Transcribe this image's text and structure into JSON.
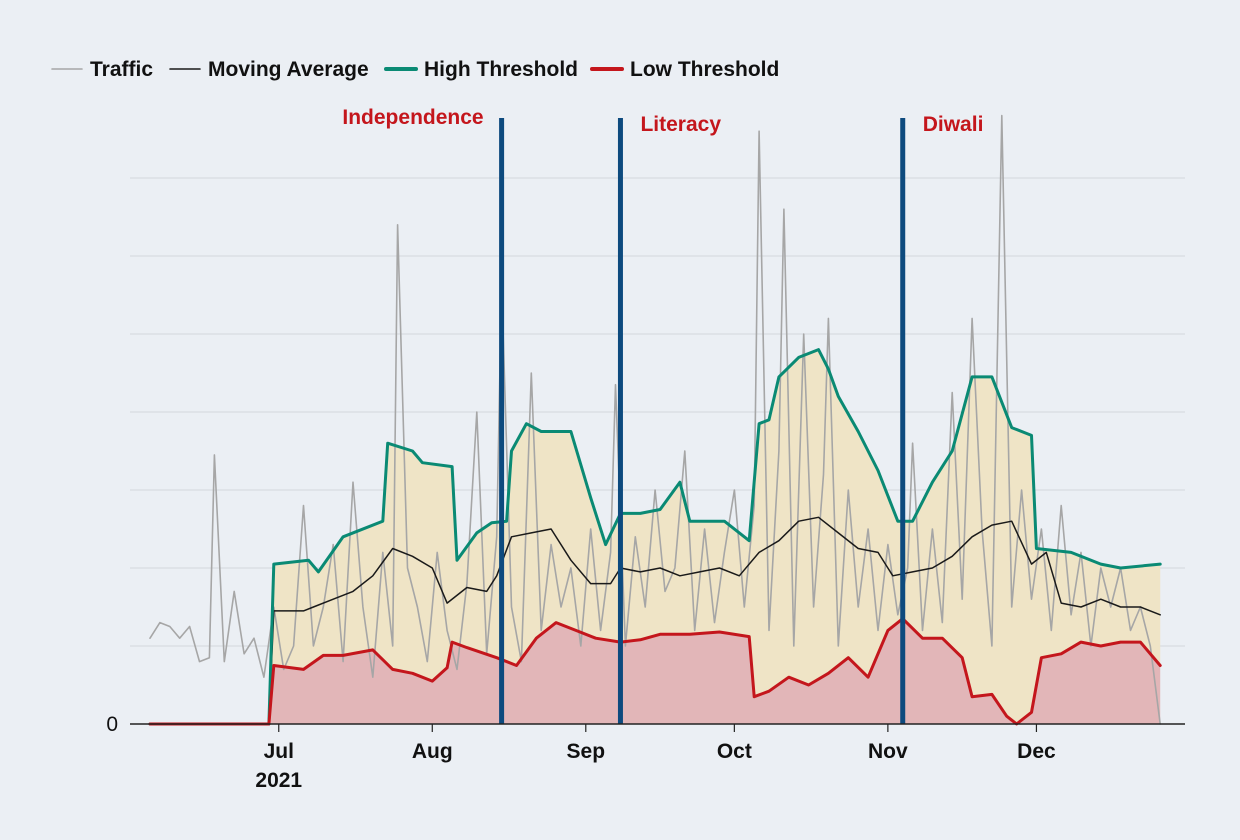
{
  "chart_data": {
    "type": "line",
    "title": "",
    "xlabel": "",
    "ylabel": "",
    "x_ticks": [
      {
        "label": "Jul",
        "date": "2021-07-01",
        "sublabel": "2021"
      },
      {
        "label": "Aug",
        "date": "2021-08-01",
        "sublabel": ""
      },
      {
        "label": "Sep",
        "date": "2021-09-01",
        "sublabel": ""
      },
      {
        "label": "Oct",
        "date": "2021-10-01",
        "sublabel": ""
      },
      {
        "label": "Nov",
        "date": "2021-11-01",
        "sublabel": ""
      },
      {
        "label": "Dec",
        "date": "2021-12-01",
        "sublabel": ""
      }
    ],
    "y_ticks": [
      "0",
      "",
      "",
      "",
      "",
      "",
      "",
      ""
    ],
    "xlim": [
      "2021-06-05",
      "2021-12-31"
    ],
    "ylim": [
      0,
      7
    ],
    "grid": true,
    "legend_position": "top-left",
    "legend": [
      {
        "label": "Traffic",
        "color": "#a6a6a6"
      },
      {
        "label": "Moving Average",
        "color": "#1a1a1a"
      },
      {
        "label": "High Threshold",
        "color": "#0a8a74"
      },
      {
        "label": "Low Threshold",
        "color": "#c4161c"
      }
    ],
    "band_colors": {
      "upper": "#efe4c6",
      "lower": "#e2b6b8"
    },
    "events": [
      {
        "label": "Independence",
        "date": "2021-08-15",
        "line_color": "#0d4a7e",
        "label_color": "#c4161c"
      },
      {
        "label": "Literacy",
        "date": "2021-09-08",
        "line_color": "#0d4a7e",
        "label_color": "#c4161c"
      },
      {
        "label": "Diwali",
        "date": "2021-11-04",
        "line_color": "#0d4a7e",
        "label_color": "#c4161c"
      }
    ],
    "series": [
      {
        "name": "Traffic",
        "color": "#a6a6a6",
        "points": [
          [
            "2021-06-05",
            1.1
          ],
          [
            "2021-06-07",
            1.3
          ],
          [
            "2021-06-09",
            1.25
          ],
          [
            "2021-06-11",
            1.1
          ],
          [
            "2021-06-13",
            1.25
          ],
          [
            "2021-06-15",
            0.8
          ],
          [
            "2021-06-17",
            0.85
          ],
          [
            "2021-06-18",
            3.45
          ],
          [
            "2021-06-20",
            0.8
          ],
          [
            "2021-06-22",
            1.7
          ],
          [
            "2021-06-24",
            0.9
          ],
          [
            "2021-06-26",
            1.1
          ],
          [
            "2021-06-28",
            0.6
          ],
          [
            "2021-06-30",
            1.5
          ],
          [
            "2021-07-02",
            0.7
          ],
          [
            "2021-07-04",
            1.0
          ],
          [
            "2021-07-06",
            2.8
          ],
          [
            "2021-07-08",
            1.0
          ],
          [
            "2021-07-10",
            1.5
          ],
          [
            "2021-07-12",
            2.3
          ],
          [
            "2021-07-14",
            0.8
          ],
          [
            "2021-07-16",
            3.1
          ],
          [
            "2021-07-18",
            1.5
          ],
          [
            "2021-07-20",
            0.6
          ],
          [
            "2021-07-22",
            2.2
          ],
          [
            "2021-07-24",
            1.0
          ],
          [
            "2021-07-25",
            6.4
          ],
          [
            "2021-07-27",
            2.0
          ],
          [
            "2021-07-29",
            1.5
          ],
          [
            "2021-07-31",
            0.8
          ],
          [
            "2021-08-02",
            2.2
          ],
          [
            "2021-08-04",
            1.2
          ],
          [
            "2021-08-06",
            0.7
          ],
          [
            "2021-08-08",
            1.8
          ],
          [
            "2021-08-10",
            4.0
          ],
          [
            "2021-08-12",
            0.9
          ],
          [
            "2021-08-14",
            2.4
          ],
          [
            "2021-08-15",
            5.65
          ],
          [
            "2021-08-17",
            1.5
          ],
          [
            "2021-08-19",
            0.8
          ],
          [
            "2021-08-21",
            4.5
          ],
          [
            "2021-08-23",
            1.2
          ],
          [
            "2021-08-25",
            2.3
          ],
          [
            "2021-08-27",
            1.5
          ],
          [
            "2021-08-29",
            2.0
          ],
          [
            "2021-08-31",
            1.0
          ],
          [
            "2021-09-02",
            2.5
          ],
          [
            "2021-09-04",
            1.2
          ],
          [
            "2021-09-06",
            2.2
          ],
          [
            "2021-09-07",
            4.35
          ],
          [
            "2021-09-09",
            1.0
          ],
          [
            "2021-09-11",
            2.4
          ],
          [
            "2021-09-13",
            1.5
          ],
          [
            "2021-09-15",
            3.0
          ],
          [
            "2021-09-17",
            1.7
          ],
          [
            "2021-09-19",
            2.0
          ],
          [
            "2021-09-21",
            3.5
          ],
          [
            "2021-09-23",
            1.2
          ],
          [
            "2021-09-25",
            2.5
          ],
          [
            "2021-09-27",
            1.3
          ],
          [
            "2021-09-29",
            2.2
          ],
          [
            "2021-10-01",
            3.0
          ],
          [
            "2021-10-03",
            1.5
          ],
          [
            "2021-10-05",
            2.8
          ],
          [
            "2021-10-06",
            7.6
          ],
          [
            "2021-10-08",
            1.2
          ],
          [
            "2021-10-10",
            3.5
          ],
          [
            "2021-10-11",
            6.6
          ],
          [
            "2021-10-13",
            1.0
          ],
          [
            "2021-10-15",
            5.0
          ],
          [
            "2021-10-17",
            1.5
          ],
          [
            "2021-10-19",
            3.2
          ],
          [
            "2021-10-20",
            5.2
          ],
          [
            "2021-10-22",
            1.0
          ],
          [
            "2021-10-24",
            3.0
          ],
          [
            "2021-10-26",
            1.5
          ],
          [
            "2021-10-28",
            2.5
          ],
          [
            "2021-10-30",
            1.2
          ],
          [
            "2021-11-01",
            2.3
          ],
          [
            "2021-11-03",
            1.4
          ],
          [
            "2021-11-05",
            2.0
          ],
          [
            "2021-11-06",
            3.6
          ],
          [
            "2021-11-08",
            1.2
          ],
          [
            "2021-11-10",
            2.5
          ],
          [
            "2021-11-12",
            1.3
          ],
          [
            "2021-11-14",
            4.25
          ],
          [
            "2021-11-16",
            1.6
          ],
          [
            "2021-11-18",
            5.2
          ],
          [
            "2021-11-20",
            2.5
          ],
          [
            "2021-11-22",
            1.0
          ],
          [
            "2021-11-24",
            7.8
          ],
          [
            "2021-11-26",
            1.5
          ],
          [
            "2021-11-28",
            3.0
          ],
          [
            "2021-11-30",
            1.6
          ],
          [
            "2021-12-02",
            2.5
          ],
          [
            "2021-12-04",
            1.2
          ],
          [
            "2021-12-06",
            2.8
          ],
          [
            "2021-12-08",
            1.4
          ],
          [
            "2021-12-10",
            2.2
          ],
          [
            "2021-12-12",
            1.0
          ],
          [
            "2021-12-14",
            2.0
          ],
          [
            "2021-12-16",
            1.5
          ],
          [
            "2021-12-18",
            2.0
          ],
          [
            "2021-12-20",
            1.2
          ],
          [
            "2021-12-22",
            1.5
          ],
          [
            "2021-12-24",
            1.0
          ],
          [
            "2021-12-26",
            0.0
          ]
        ]
      },
      {
        "name": "Moving Average",
        "color": "#1a1a1a",
        "points": [
          [
            "2021-06-05",
            0.0
          ],
          [
            "2021-06-29",
            0.0
          ],
          [
            "2021-06-30",
            1.45
          ],
          [
            "2021-07-06",
            1.45
          ],
          [
            "2021-07-08",
            1.5
          ],
          [
            "2021-07-12",
            1.6
          ],
          [
            "2021-07-16",
            1.7
          ],
          [
            "2021-07-20",
            1.9
          ],
          [
            "2021-07-24",
            2.25
          ],
          [
            "2021-07-28",
            2.15
          ],
          [
            "2021-08-01",
            2.0
          ],
          [
            "2021-08-04",
            1.55
          ],
          [
            "2021-08-08",
            1.75
          ],
          [
            "2021-08-12",
            1.7
          ],
          [
            "2021-08-14",
            1.9
          ],
          [
            "2021-08-17",
            2.4
          ],
          [
            "2021-08-21",
            2.45
          ],
          [
            "2021-08-25",
            2.5
          ],
          [
            "2021-08-29",
            2.1
          ],
          [
            "2021-09-02",
            1.8
          ],
          [
            "2021-09-06",
            1.8
          ],
          [
            "2021-09-08",
            2.0
          ],
          [
            "2021-09-12",
            1.95
          ],
          [
            "2021-09-16",
            2.0
          ],
          [
            "2021-09-20",
            1.9
          ],
          [
            "2021-09-24",
            1.95
          ],
          [
            "2021-09-28",
            2.0
          ],
          [
            "2021-10-02",
            1.9
          ],
          [
            "2021-10-06",
            2.2
          ],
          [
            "2021-10-10",
            2.35
          ],
          [
            "2021-10-14",
            2.6
          ],
          [
            "2021-10-18",
            2.65
          ],
          [
            "2021-10-22",
            2.45
          ],
          [
            "2021-10-26",
            2.25
          ],
          [
            "2021-10-30",
            2.2
          ],
          [
            "2021-11-02",
            1.9
          ],
          [
            "2021-11-06",
            1.95
          ],
          [
            "2021-11-10",
            2.0
          ],
          [
            "2021-11-14",
            2.15
          ],
          [
            "2021-11-18",
            2.4
          ],
          [
            "2021-11-22",
            2.55
          ],
          [
            "2021-11-26",
            2.6
          ],
          [
            "2021-11-30",
            2.05
          ],
          [
            "2021-12-03",
            2.2
          ],
          [
            "2021-12-06",
            1.55
          ],
          [
            "2021-12-10",
            1.5
          ],
          [
            "2021-12-14",
            1.6
          ],
          [
            "2021-12-18",
            1.5
          ],
          [
            "2021-12-22",
            1.5
          ],
          [
            "2021-12-26",
            1.4
          ]
        ]
      },
      {
        "name": "High Threshold",
        "color": "#0a8a74",
        "points": [
          [
            "2021-06-05",
            0.0
          ],
          [
            "2021-06-29",
            0.0
          ],
          [
            "2021-06-30",
            2.05
          ],
          [
            "2021-07-07",
            2.1
          ],
          [
            "2021-07-09",
            1.95
          ],
          [
            "2021-07-14",
            2.4
          ],
          [
            "2021-07-22",
            2.6
          ],
          [
            "2021-07-23",
            3.6
          ],
          [
            "2021-07-28",
            3.5
          ],
          [
            "2021-07-30",
            3.35
          ],
          [
            "2021-08-05",
            3.3
          ],
          [
            "2021-08-06",
            2.1
          ],
          [
            "2021-08-10",
            2.45
          ],
          [
            "2021-08-13",
            2.58
          ],
          [
            "2021-08-16",
            2.6
          ],
          [
            "2021-08-17",
            3.5
          ],
          [
            "2021-08-20",
            3.85
          ],
          [
            "2021-08-23",
            3.75
          ],
          [
            "2021-08-29",
            3.75
          ],
          [
            "2021-09-02",
            2.9
          ],
          [
            "2021-09-05",
            2.3
          ],
          [
            "2021-09-08",
            2.7
          ],
          [
            "2021-09-12",
            2.7
          ],
          [
            "2021-09-16",
            2.75
          ],
          [
            "2021-09-20",
            3.1
          ],
          [
            "2021-09-22",
            2.6
          ],
          [
            "2021-09-29",
            2.6
          ],
          [
            "2021-10-04",
            2.35
          ],
          [
            "2021-10-06",
            3.85
          ],
          [
            "2021-10-08",
            3.9
          ],
          [
            "2021-10-10",
            4.45
          ],
          [
            "2021-10-14",
            4.7
          ],
          [
            "2021-10-18",
            4.8
          ],
          [
            "2021-10-20",
            4.55
          ],
          [
            "2021-10-22",
            4.2
          ],
          [
            "2021-10-26",
            3.75
          ],
          [
            "2021-10-30",
            3.25
          ],
          [
            "2021-11-03",
            2.6
          ],
          [
            "2021-11-06",
            2.6
          ],
          [
            "2021-11-10",
            3.1
          ],
          [
            "2021-11-14",
            3.5
          ],
          [
            "2021-11-18",
            4.45
          ],
          [
            "2021-11-22",
            4.45
          ],
          [
            "2021-11-26",
            3.8
          ],
          [
            "2021-11-30",
            3.7
          ],
          [
            "2021-12-01",
            2.25
          ],
          [
            "2021-12-08",
            2.2
          ],
          [
            "2021-12-14",
            2.05
          ],
          [
            "2021-12-18",
            2.0
          ],
          [
            "2021-12-26",
            2.05
          ]
        ]
      },
      {
        "name": "Low Threshold",
        "color": "#c4161c",
        "points": [
          [
            "2021-06-05",
            0.0
          ],
          [
            "2021-06-29",
            0.0
          ],
          [
            "2021-06-30",
            0.75
          ],
          [
            "2021-07-06",
            0.7
          ],
          [
            "2021-07-10",
            0.88
          ],
          [
            "2021-07-14",
            0.88
          ],
          [
            "2021-07-20",
            0.95
          ],
          [
            "2021-07-24",
            0.7
          ],
          [
            "2021-07-28",
            0.65
          ],
          [
            "2021-08-01",
            0.55
          ],
          [
            "2021-08-04",
            0.72
          ],
          [
            "2021-08-05",
            1.05
          ],
          [
            "2021-08-08",
            0.98
          ],
          [
            "2021-08-14",
            0.85
          ],
          [
            "2021-08-18",
            0.75
          ],
          [
            "2021-08-22",
            1.1
          ],
          [
            "2021-08-26",
            1.3
          ],
          [
            "2021-08-30",
            1.2
          ],
          [
            "2021-09-03",
            1.1
          ],
          [
            "2021-09-08",
            1.05
          ],
          [
            "2021-09-12",
            1.08
          ],
          [
            "2021-09-16",
            1.15
          ],
          [
            "2021-09-22",
            1.15
          ],
          [
            "2021-09-28",
            1.18
          ],
          [
            "2021-10-04",
            1.12
          ],
          [
            "2021-10-05",
            0.35
          ],
          [
            "2021-10-08",
            0.42
          ],
          [
            "2021-10-12",
            0.6
          ],
          [
            "2021-10-16",
            0.5
          ],
          [
            "2021-10-20",
            0.65
          ],
          [
            "2021-10-24",
            0.85
          ],
          [
            "2021-10-28",
            0.6
          ],
          [
            "2021-11-01",
            1.2
          ],
          [
            "2021-11-04",
            1.35
          ],
          [
            "2021-11-08",
            1.1
          ],
          [
            "2021-11-12",
            1.1
          ],
          [
            "2021-11-16",
            0.85
          ],
          [
            "2021-11-18",
            0.35
          ],
          [
            "2021-11-22",
            0.38
          ],
          [
            "2021-11-25",
            0.1
          ],
          [
            "2021-11-27",
            0.0
          ],
          [
            "2021-11-30",
            0.15
          ],
          [
            "2021-12-02",
            0.85
          ],
          [
            "2021-12-06",
            0.9
          ],
          [
            "2021-12-10",
            1.05
          ],
          [
            "2021-12-14",
            1.0
          ],
          [
            "2021-12-18",
            1.05
          ],
          [
            "2021-12-22",
            1.05
          ],
          [
            "2021-12-26",
            0.75
          ]
        ]
      }
    ]
  }
}
